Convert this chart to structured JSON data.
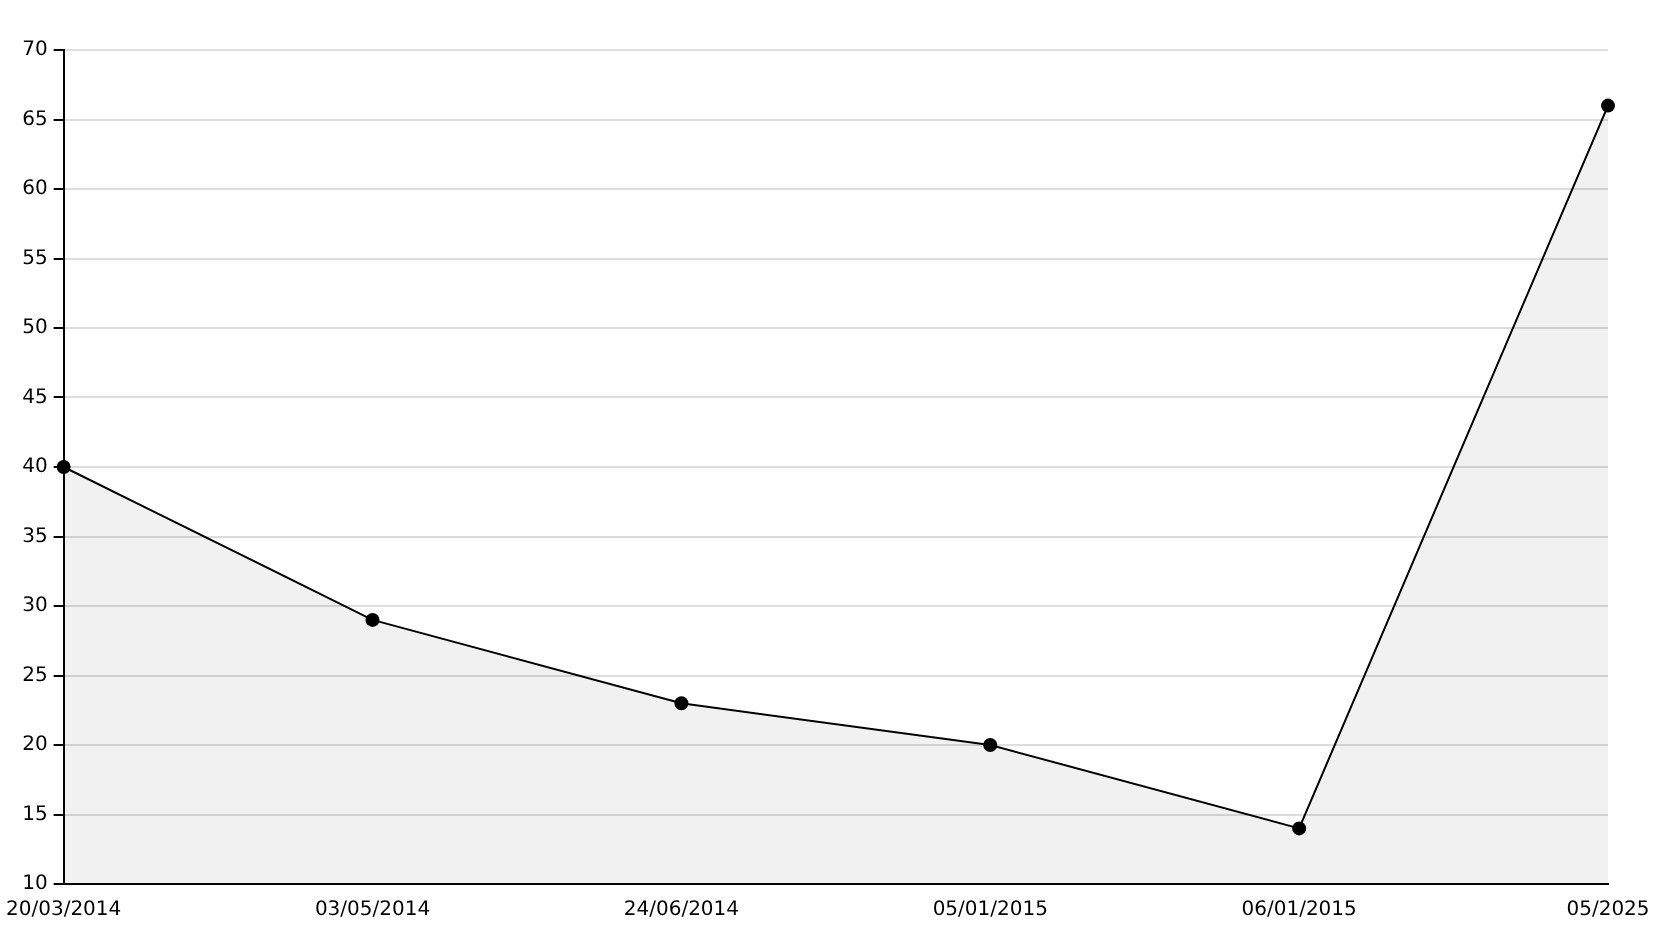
{
  "chart_data": {
    "type": "area",
    "categories": [
      "20/03/2014",
      "03/05/2014",
      "24/06/2014",
      "05/01/2015",
      "06/01/2015",
      "05/2025"
    ],
    "series": [
      {
        "color": "#000000",
        "values": [
          40,
          29,
          23,
          20,
          14,
          66
        ]
      }
    ],
    "ylim": [
      10,
      70
    ],
    "yticks": [
      10,
      15,
      20,
      25,
      30,
      35,
      40,
      45,
      50,
      55,
      60,
      65,
      70
    ],
    "grid": "y",
    "legend": false,
    "marker": "circle",
    "line_style": "solid"
  }
}
